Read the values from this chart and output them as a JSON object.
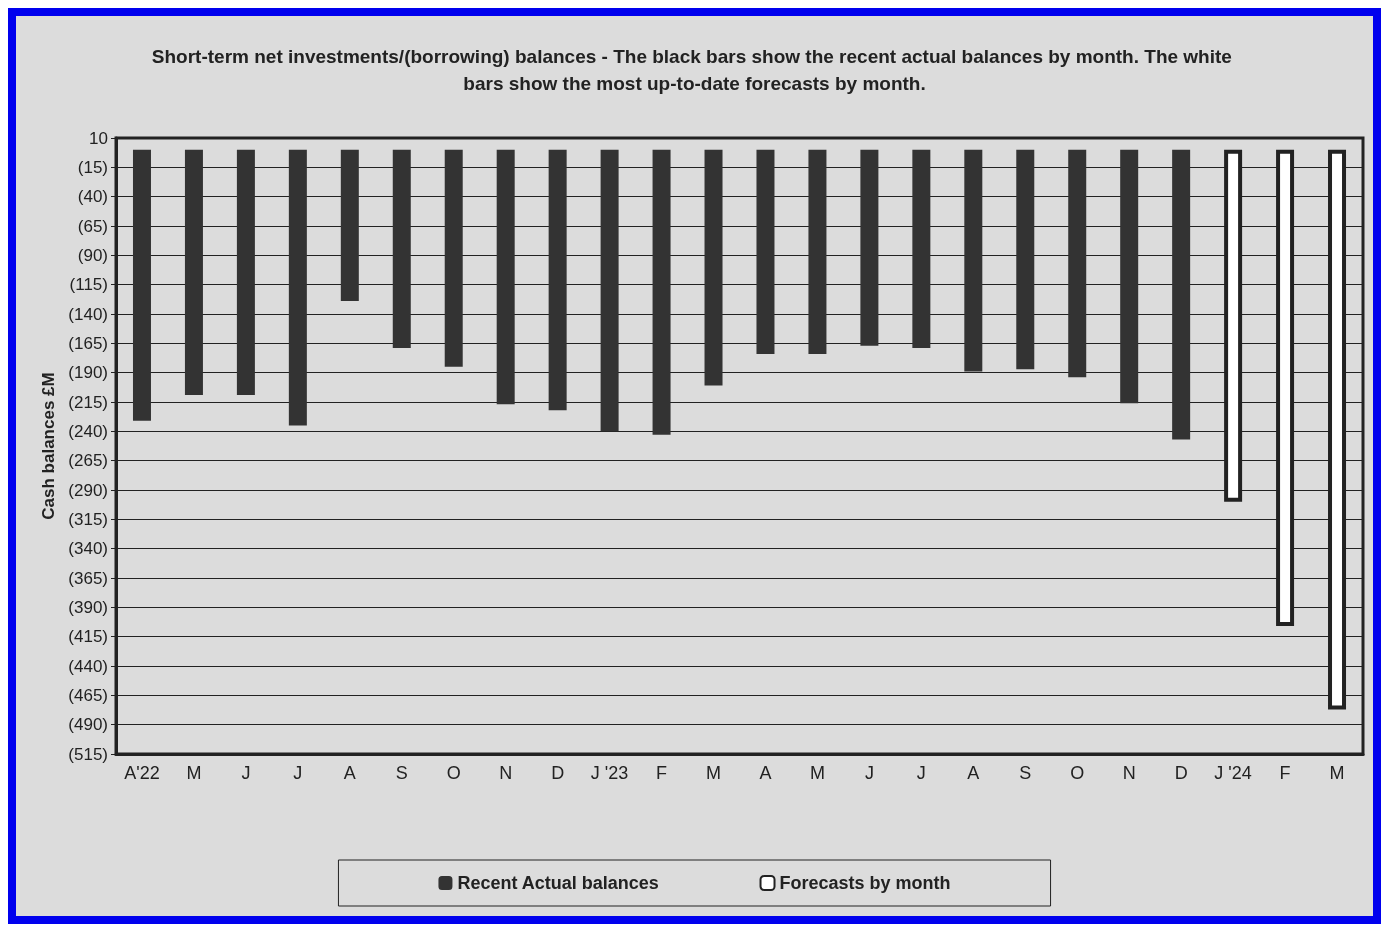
{
  "chart_data": {
    "type": "bar",
    "title": "Short-term net investments/(borrowing) balances - The black bars show the recent actual balances by month. The white bars show the most up-to-date forecasts by month.",
    "ylabel": "Cash balances £M",
    "categories": [
      "A'22",
      "M",
      "J",
      "J",
      "A",
      "S",
      "O",
      "N",
      "D",
      "J '23",
      "F",
      "M",
      "A",
      "M",
      "J",
      "J",
      "A",
      "S",
      "O",
      "N",
      "D",
      "J '24",
      "F",
      "M"
    ],
    "series": [
      {
        "name": "Recent Actual balances",
        "color": "#333333",
        "values": [
          -231,
          -209,
          -209,
          -235,
          -129,
          -169,
          -185,
          -217,
          -222,
          -240,
          -243,
          -201,
          -174,
          -174,
          -167,
          -169,
          -189,
          -187,
          -194,
          -216,
          -247,
          null,
          null,
          null
        ]
      },
      {
        "name": "Forecasts by month",
        "color": "#ffffff",
        "values": [
          null,
          null,
          null,
          null,
          null,
          null,
          null,
          null,
          null,
          null,
          null,
          null,
          null,
          null,
          null,
          null,
          null,
          null,
          null,
          null,
          null,
          -300,
          -406,
          -477
        ]
      }
    ],
    "ylim": [
      -515,
      10
    ],
    "yticks": [
      10,
      {
        "value": -15,
        "label": "(15)"
      },
      {
        "value": -40,
        "label": "(40)"
      },
      {
        "value": -65,
        "label": "(65)"
      },
      {
        "value": -90,
        "label": "(90)"
      },
      {
        "value": -115,
        "label": "(115)"
      },
      {
        "value": -140,
        "label": "(140)"
      },
      {
        "value": -165,
        "label": "(165)"
      },
      {
        "value": -190,
        "label": "(190)"
      },
      {
        "value": -215,
        "label": "(215)"
      },
      {
        "value": -240,
        "label": "(240)"
      },
      {
        "value": -265,
        "label": "(265)"
      },
      {
        "value": -290,
        "label": "(290)"
      },
      {
        "value": -315,
        "label": "(315)"
      },
      {
        "value": -340,
        "label": "(340)"
      },
      {
        "value": -365,
        "label": "(365)"
      },
      {
        "value": -390,
        "label": "(390)"
      },
      {
        "value": -415,
        "label": "(415)"
      },
      {
        "value": -440,
        "label": "(440)"
      },
      {
        "value": -465,
        "label": "(465)"
      },
      {
        "value": -490,
        "label": "(490)"
      },
      {
        "value": -515,
        "label": "(515)"
      }
    ],
    "grid": "y",
    "legend": "bottom"
  }
}
